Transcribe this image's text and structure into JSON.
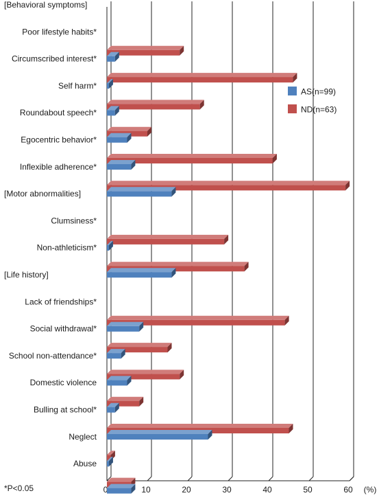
{
  "chart_data": {
    "type": "bar",
    "orientation": "horizontal",
    "categories": [
      "[Behavioral symptoms]",
      "Poor lifestyle habits*",
      "Circumscribed interest*",
      "Self harm*",
      "Roundabout speech*",
      "Egocentric behavior*",
      "Inflexible adherence*",
      "[Motor abnormalities]",
      "Clumsiness*",
      "Non-athleticism*",
      "[Life history]",
      "Lack of friendships*",
      "Social withdrawal*",
      "School non-attendance*",
      "Domestic violence",
      "Bulling at school*",
      "Neglect",
      "Abuse"
    ],
    "series": [
      {
        "name": "AS(n=99)",
        "color": "#4f81bd",
        "values": [
          null,
          2,
          0.5,
          2,
          5,
          6,
          16,
          null,
          0.5,
          16,
          null,
          8,
          3.5,
          5,
          2,
          25,
          0.5,
          6
        ]
      },
      {
        "name": "ND(n=63)",
        "color": "#c0504d",
        "values": [
          null,
          18,
          46,
          23,
          10,
          41,
          59,
          null,
          29,
          34,
          null,
          44,
          15,
          18,
          8,
          45,
          1,
          6
        ]
      }
    ],
    "xlim": [
      0,
      60
    ],
    "xticks": [
      "0",
      "10",
      "20",
      "30",
      "40",
      "50",
      "60"
    ],
    "xunit": "(%)",
    "grid": true,
    "legend_position": "top-right",
    "footnote": "*P<0.05"
  }
}
